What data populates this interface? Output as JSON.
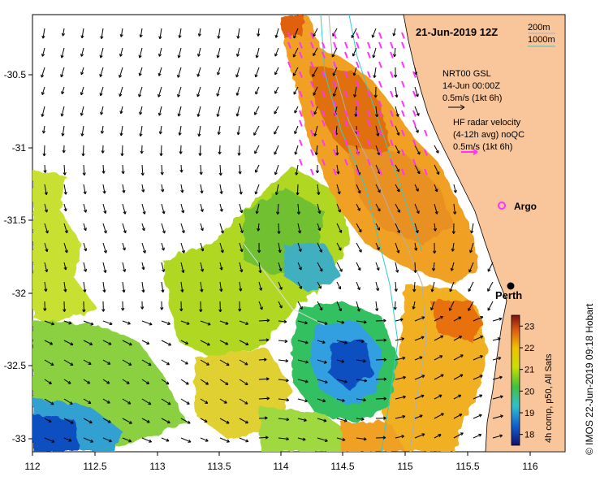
{
  "map": {
    "date_label": "21-Jun-2019 12Z",
    "legend_contours": {
      "shallow": "200m",
      "deep": "1000m",
      "shallow_color": "#b0b0b0",
      "deep_color": "#33cccc"
    },
    "nrt_label": [
      "NRT00 GSL",
      "14-Jun 00:00Z",
      "0.5m/s (1kt 6h)"
    ],
    "hf_label": [
      "HF radar velocity",
      "(4-12h avg) noQC",
      "0.5m/s (1kt 6h)"
    ],
    "argo_label": "Argo",
    "city_label": "Perth",
    "credit": "© IMOS 22-Jun-2019 09:18 Hobart",
    "colorbar": {
      "title": "4h comp, p50, All Sats",
      "ticks": [
        "23",
        "22",
        "21",
        "20",
        "19",
        "18"
      ],
      "min": 17.5,
      "max": 23.5
    },
    "x_ticks": [
      "112",
      "112.5",
      "113",
      "113.5",
      "114",
      "114.5",
      "115",
      "115.5",
      "116"
    ],
    "y_ticks": [
      "-30.5",
      "-31",
      "-31.5",
      "-32",
      "-32.5",
      "-33"
    ],
    "colors": {
      "land": "#f9c59a",
      "argo": "#ff33ff",
      "hf_arrows": "#ff33ff",
      "model_arrows": "#000000"
    }
  }
}
